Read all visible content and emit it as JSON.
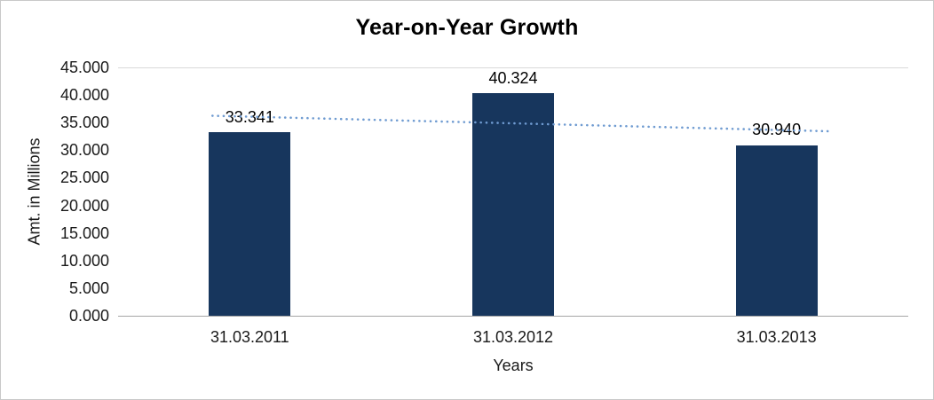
{
  "chart_data": {
    "type": "bar",
    "title": "Year-on-Year Growth",
    "categories": [
      "31.03.2011",
      "31.03.2012",
      "31.03.2013"
    ],
    "values": [
      33.341,
      40.324,
      30.94
    ],
    "data_labels": [
      "33.341",
      "40.324",
      "30.940"
    ],
    "xlabel": "Years",
    "ylabel": "Amt. in Millions",
    "ylim": [
      0,
      45
    ],
    "ytick_step": 5,
    "ytick_labels": [
      "0.000",
      "5.000",
      "10.000",
      "15.000",
      "20.000",
      "25.000",
      "30.000",
      "35.000",
      "40.000",
      "45.000"
    ],
    "legend": "none",
    "grid": "top-gridline-only",
    "trendline": {
      "type": "linear",
      "style": "dotted"
    }
  },
  "colors": {
    "bar": "#17365D",
    "trendline": "#6F9BD1",
    "axis_line": "#A6A6A6",
    "gridline": "#D9D9D9",
    "text": "#000000",
    "frame_border": "#C9C9C9",
    "background": "#FFFFFF"
  }
}
